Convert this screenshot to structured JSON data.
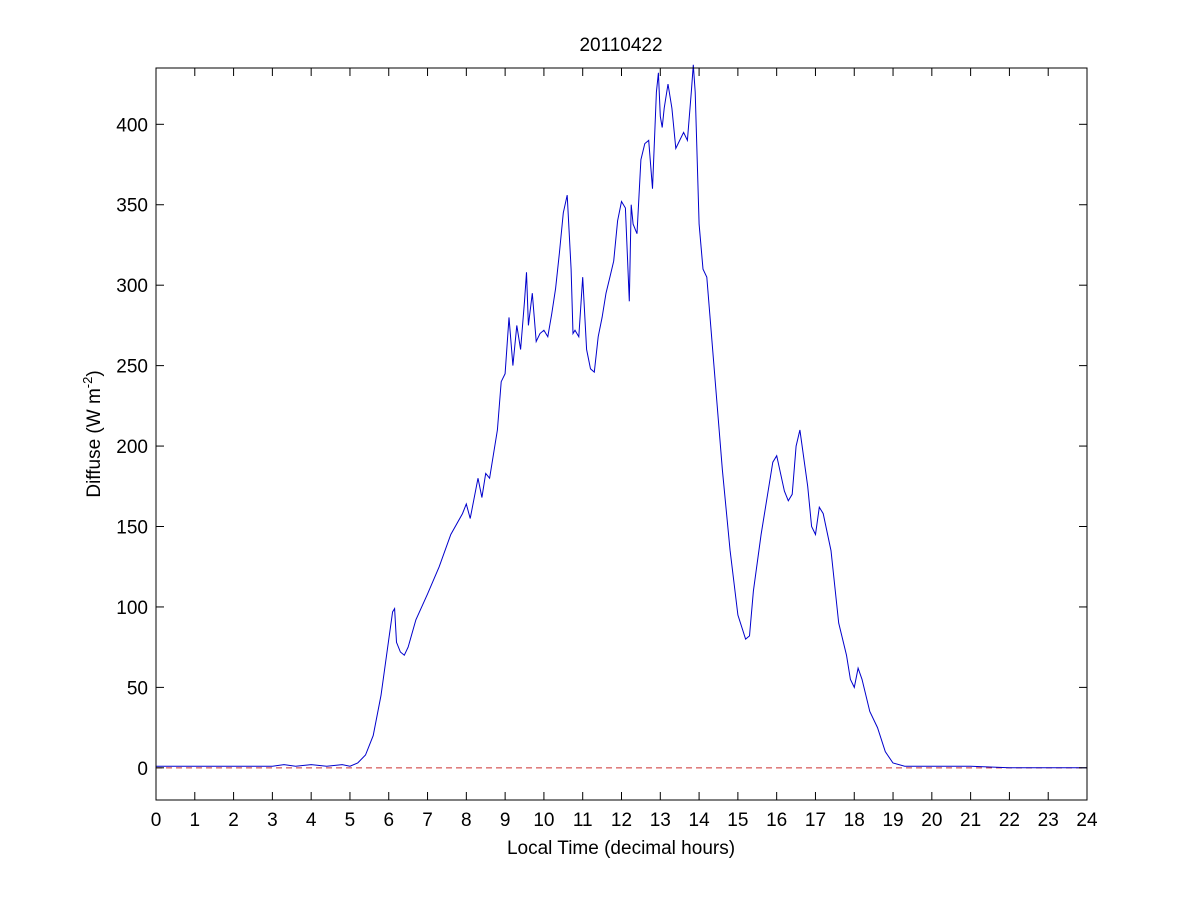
{
  "chart_data": {
    "type": "line",
    "title": "20110422",
    "xlabel": "Local Time (decimal hours)",
    "ylabel": "Diffuse (W m",
    "ylabel_exponent": "-2",
    "ylabel_suffix": ")",
    "xlim": [
      0,
      24
    ],
    "ylim": [
      -20,
      435
    ],
    "x_ticks": [
      0,
      1,
      2,
      3,
      4,
      5,
      6,
      7,
      8,
      9,
      10,
      11,
      12,
      13,
      14,
      15,
      16,
      17,
      18,
      19,
      20,
      21,
      22,
      23,
      24
    ],
    "y_ticks": [
      0,
      50,
      100,
      150,
      200,
      250,
      300,
      350,
      400
    ],
    "grid": false,
    "legend": "none",
    "colors": {
      "series": "#0000cc",
      "reference": "#cc3333",
      "axes": "#000000"
    },
    "reference_line": {
      "y": 0,
      "style": "dashed"
    },
    "series": [
      {
        "x": [
          0,
          1,
          2,
          3,
          3.3,
          3.6,
          4,
          4.4,
          4.8,
          5,
          5.2,
          5.4,
          5.6,
          5.8,
          6,
          6.1,
          6.15,
          6.2,
          6.3,
          6.4,
          6.5,
          6.7,
          7,
          7.3,
          7.6,
          7.9,
          8,
          8.1,
          8.3,
          8.4,
          8.5,
          8.6,
          8.7,
          8.8,
          8.9,
          9.0,
          9.1,
          9.2,
          9.3,
          9.4,
          9.5,
          9.55,
          9.6,
          9.7,
          9.8,
          9.9,
          10.0,
          10.1,
          10.2,
          10.3,
          10.4,
          10.5,
          10.6,
          10.7,
          10.75,
          10.8,
          10.9,
          11.0,
          11.1,
          11.2,
          11.3,
          11.4,
          11.5,
          11.6,
          11.7,
          11.8,
          11.9,
          12.0,
          12.1,
          12.2,
          12.25,
          12.3,
          12.4,
          12.5,
          12.6,
          12.7,
          12.8,
          12.9,
          12.95,
          13.0,
          13.05,
          13.1,
          13.2,
          13.3,
          13.4,
          13.5,
          13.6,
          13.7,
          13.8,
          13.85,
          13.9,
          14.0,
          14.1,
          14.2,
          14.3,
          14.4,
          14.6,
          14.8,
          15.0,
          15.2,
          15.3,
          15.4,
          15.6,
          15.8,
          15.9,
          16.0,
          16.2,
          16.3,
          16.4,
          16.5,
          16.6,
          16.8,
          16.9,
          17.0,
          17.1,
          17.2,
          17.4,
          17.6,
          17.8,
          17.9,
          18.0,
          18.1,
          18.2,
          18.4,
          18.6,
          18.8,
          19.0,
          19.3,
          19.6,
          20,
          20.5,
          21,
          22,
          23,
          24
        ],
        "values": [
          1,
          1,
          1,
          1,
          2,
          1,
          2,
          1,
          2,
          1,
          3,
          8,
          20,
          45,
          80,
          97,
          99,
          78,
          72,
          70,
          75,
          92,
          108,
          125,
          145,
          158,
          164,
          155,
          180,
          168,
          183,
          180,
          195,
          210,
          240,
          245,
          280,
          250,
          275,
          260,
          290,
          308,
          275,
          295,
          265,
          270,
          272,
          268,
          282,
          298,
          320,
          345,
          356,
          310,
          270,
          272,
          268,
          305,
          260,
          248,
          246,
          268,
          280,
          295,
          305,
          315,
          340,
          352,
          348,
          290,
          350,
          338,
          332,
          378,
          388,
          390,
          360,
          420,
          432,
          405,
          398,
          410,
          425,
          410,
          385,
          390,
          395,
          390,
          420,
          437,
          420,
          338,
          310,
          305,
          275,
          245,
          185,
          135,
          95,
          80,
          82,
          110,
          145,
          175,
          190,
          194,
          172,
          166,
          170,
          200,
          210,
          175,
          150,
          145,
          162,
          158,
          135,
          90,
          70,
          55,
          50,
          62,
          55,
          35,
          25,
          10,
          3,
          1,
          1,
          1,
          1,
          1,
          0,
          0,
          0
        ]
      }
    ]
  }
}
